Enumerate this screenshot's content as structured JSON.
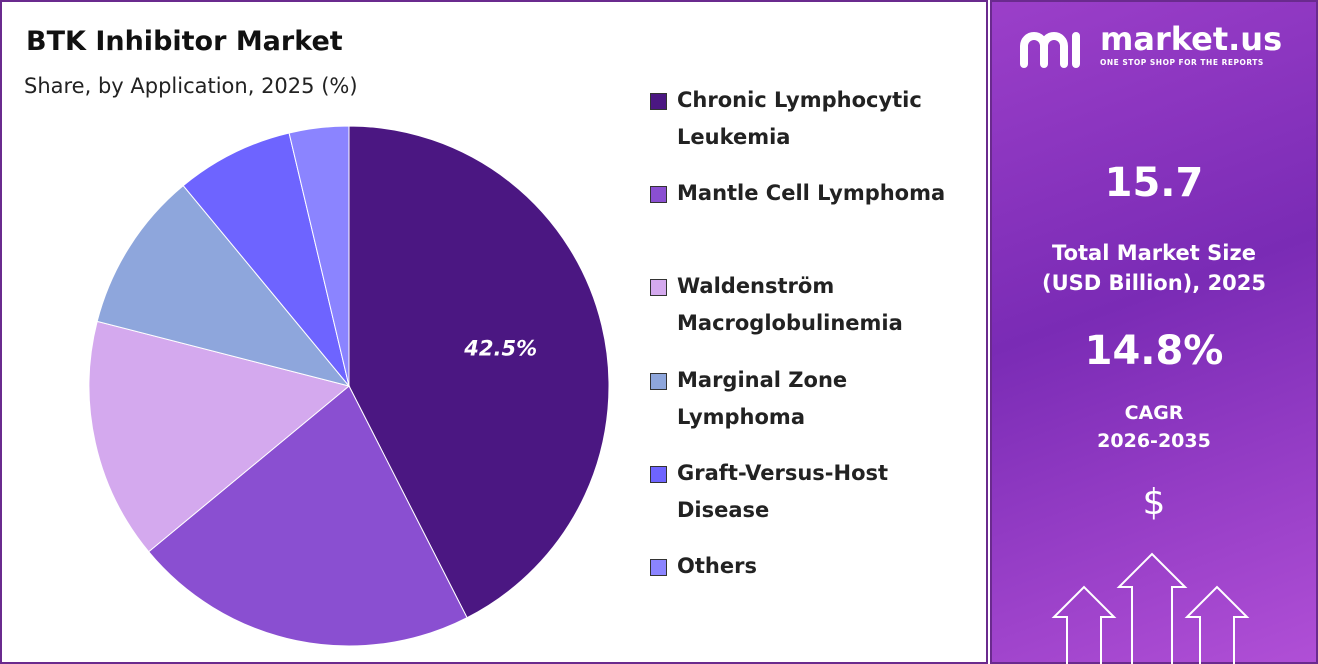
{
  "chart_data": {
    "type": "pie",
    "title": "BTK Inhibitor Market",
    "subtitle": "Share, by Application, 2025 (%)",
    "categories": [
      "Chronic Lymphocytic Leukemia",
      "Mantle Cell Lymphoma",
      "Waldenström Macroglobulinemia",
      "Marginal Zone Lymphoma",
      "Graft-Versus-Host Disease",
      "Others"
    ],
    "values": [
      42.5,
      21.5,
      15,
      10,
      7.3,
      3.7
    ],
    "value_labels": [
      "42.5%",
      null,
      null,
      null,
      null,
      null
    ],
    "colors": [
      "#4b1782",
      "#8a4fd1",
      "#d4a9ee",
      "#8ea6dc",
      "#6e64ff",
      "#8b84ff"
    ]
  },
  "panel": {
    "brand": "market.us",
    "tagline": "ONE STOP SHOP FOR THE REPORTS",
    "market_size": 15.7,
    "market_size_label": "Total Market Size (USD Billion), 2025",
    "cagr": "14.8%",
    "cagr_label": "CAGR",
    "cagr_period": "2026-2035",
    "currency_symbol": "$"
  }
}
